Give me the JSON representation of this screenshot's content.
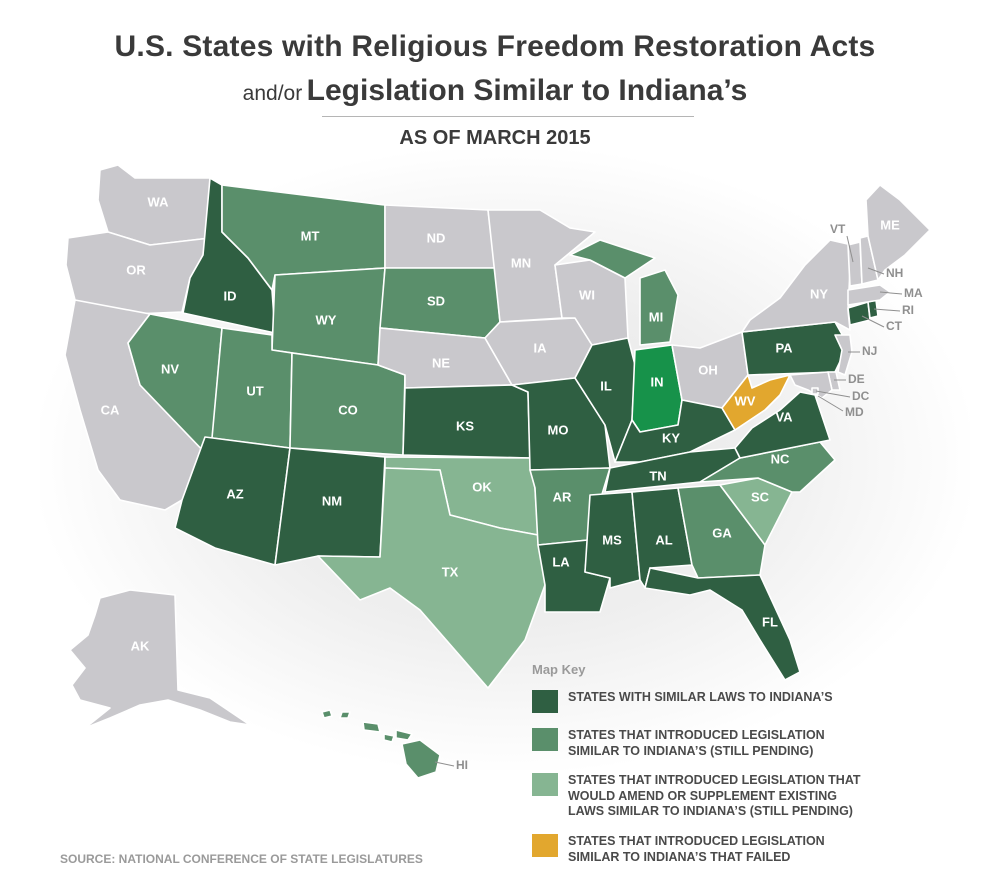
{
  "title_line1": "U.S. States with Religious Freedom Restoration Acts",
  "title_line2_prefix": "and/or",
  "title_line2_main": "Legislation Similar to Indiana’s",
  "subtitle": "AS OF MARCH 2015",
  "colors": {
    "similar_laws": "#2f5f42",
    "introduced_pending": "#5a8f6b",
    "amend_supplement": "#86b592",
    "failed": "#e2a72e",
    "indiana": "#17924a",
    "none": "#c9c8cc"
  },
  "states": {
    "WA": {
      "label": "WA",
      "status": "none"
    },
    "OR": {
      "label": "OR",
      "status": "none"
    },
    "CA": {
      "label": "CA",
      "status": "none"
    },
    "ID": {
      "label": "ID",
      "status": "similar_laws"
    },
    "NV": {
      "label": "NV",
      "status": "introduced_pending"
    },
    "MT": {
      "label": "MT",
      "status": "introduced_pending"
    },
    "WY": {
      "label": "WY",
      "status": "introduced_pending"
    },
    "UT": {
      "label": "UT",
      "status": "introduced_pending"
    },
    "CO": {
      "label": "CO",
      "status": "introduced_pending"
    },
    "AZ": {
      "label": "AZ",
      "status": "similar_laws"
    },
    "NM": {
      "label": "NM",
      "status": "similar_laws"
    },
    "ND": {
      "label": "ND",
      "status": "none"
    },
    "SD": {
      "label": "SD",
      "status": "introduced_pending"
    },
    "NE": {
      "label": "NE",
      "status": "none"
    },
    "KS": {
      "label": "KS",
      "status": "similar_laws"
    },
    "OK": {
      "label": "OK",
      "status": "amend_supplement"
    },
    "TX": {
      "label": "TX",
      "status": "amend_supplement"
    },
    "MN": {
      "label": "MN",
      "status": "none"
    },
    "IA": {
      "label": "IA",
      "status": "none"
    },
    "MO": {
      "label": "MO",
      "status": "similar_laws"
    },
    "AR": {
      "label": "AR",
      "status": "introduced_pending"
    },
    "LA": {
      "label": "LA",
      "status": "similar_laws"
    },
    "WI": {
      "label": "WI",
      "status": "none"
    },
    "IL": {
      "label": "IL",
      "status": "similar_laws"
    },
    "MI": {
      "label": "MI",
      "status": "introduced_pending"
    },
    "IN": {
      "label": "IN",
      "status": "indiana"
    },
    "OH": {
      "label": "OH",
      "status": "none"
    },
    "KY": {
      "label": "KY",
      "status": "similar_laws"
    },
    "TN": {
      "label": "TN",
      "status": "similar_laws"
    },
    "MS": {
      "label": "MS",
      "status": "similar_laws"
    },
    "AL": {
      "label": "AL",
      "status": "similar_laws"
    },
    "GA": {
      "label": "GA",
      "status": "introduced_pending"
    },
    "FL": {
      "label": "FL",
      "status": "similar_laws"
    },
    "SC": {
      "label": "SC",
      "status": "amend_supplement"
    },
    "NC": {
      "label": "NC",
      "status": "introduced_pending"
    },
    "VA": {
      "label": "VA",
      "status": "similar_laws"
    },
    "WV": {
      "label": "WV",
      "status": "failed"
    },
    "PA": {
      "label": "PA",
      "status": "similar_laws"
    },
    "NY": {
      "label": "NY",
      "status": "none"
    },
    "NJ": {
      "label": "NJ",
      "status": "none"
    },
    "DE": {
      "label": "DE",
      "status": "none"
    },
    "DC": {
      "label": "DC",
      "status": "none"
    },
    "MD": {
      "label": "MD",
      "status": "none"
    },
    "CT": {
      "label": "CT",
      "status": "similar_laws"
    },
    "RI": {
      "label": "RI",
      "status": "similar_laws"
    },
    "MA": {
      "label": "MA",
      "status": "none"
    },
    "NH": {
      "label": "NH",
      "status": "none"
    },
    "VT": {
      "label": "VT",
      "status": "none"
    },
    "ME": {
      "label": "ME",
      "status": "none"
    },
    "AK": {
      "label": "AK",
      "status": "none"
    },
    "HI": {
      "label": "HI",
      "status": "introduced_pending"
    }
  },
  "key": {
    "title": "Map Key",
    "items": [
      {
        "label": "STATES WITH SIMILAR LAWS TO INDIANA’S",
        "color": "#2f5f42"
      },
      {
        "label": "STATES THAT INTRODUCED LEGISLATION\nSIMILAR TO INDIANA’S (STILL PENDING)",
        "color": "#5a8f6b"
      },
      {
        "label": "STATES THAT INTRODUCED LEGISLATION THAT\nWOULD AMEND OR SUPPLEMENT EXISTING\nLAWS SIMILAR TO INDIANA’S (STILL PENDING)",
        "color": "#86b592"
      },
      {
        "label": "STATES THAT INTRODUCED LEGISLATION\nSIMILAR TO INDIANA’S THAT FAILED",
        "color": "#e2a72e"
      }
    ]
  },
  "source": "SOURCE: NATIONAL CONFERENCE OF STATE LEGISLATURES"
}
